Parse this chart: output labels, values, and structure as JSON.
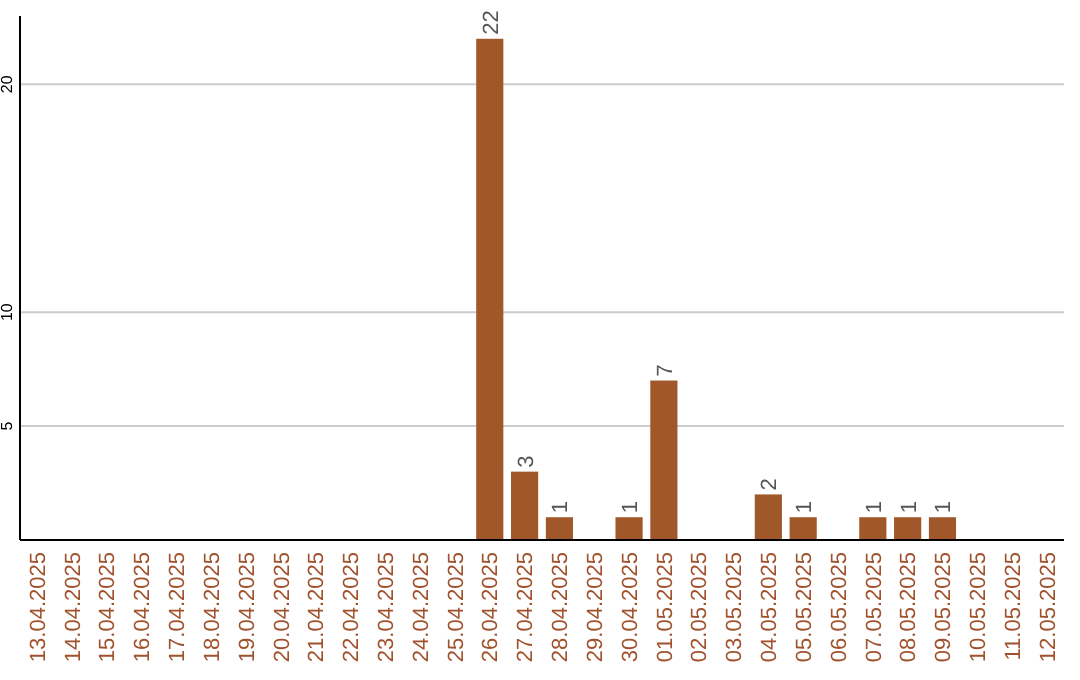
{
  "chart_data": {
    "type": "bar",
    "categories": [
      "13.04.2025",
      "14.04.2025",
      "15.04.2025",
      "16.04.2025",
      "17.04.2025",
      "18.04.2025",
      "19.04.2025",
      "20.04.2025",
      "21.04.2025",
      "22.04.2025",
      "23.04.2025",
      "24.04.2025",
      "25.04.2025",
      "26.04.2025",
      "27.04.2025",
      "28.04.2025",
      "29.04.2025",
      "30.04.2025",
      "01.05.2025",
      "02.05.2025",
      "03.05.2025",
      "04.05.2025",
      "05.05.2025",
      "06.05.2025",
      "07.05.2025",
      "08.05.2025",
      "09.05.2025",
      "10.05.2025",
      "11.05.2025",
      "12.05.2025"
    ],
    "values": [
      0,
      0,
      0,
      0,
      0,
      0,
      0,
      0,
      0,
      0,
      0,
      0,
      0,
      22,
      3,
      1,
      0,
      1,
      7,
      0,
      0,
      2,
      1,
      0,
      1,
      1,
      1,
      0,
      0,
      0
    ],
    "value_labels": [
      null,
      null,
      null,
      null,
      null,
      null,
      null,
      null,
      null,
      null,
      null,
      null,
      null,
      "22",
      "3",
      "1",
      null,
      "1",
      "7",
      null,
      null,
      "2",
      "1",
      null,
      "1",
      "1",
      "1",
      null,
      null,
      null
    ],
    "color": "#a0582a",
    "ylim": [
      0,
      23
    ],
    "yticks": [
      5,
      10,
      20
    ],
    "grid": "y"
  }
}
